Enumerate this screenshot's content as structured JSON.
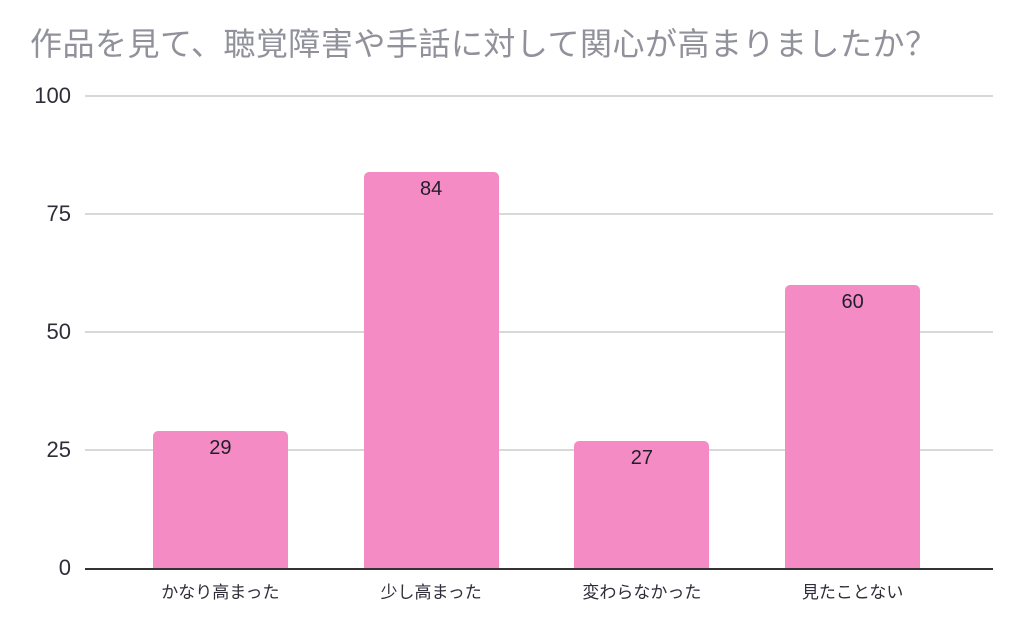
{
  "chart_data": {
    "type": "bar",
    "title": "作品を見て、聴覚障害や手話に対して関心が高まりましたか？",
    "categories": [
      "かなり高まった",
      "少し高まった",
      "変わらなかった",
      "見たことない"
    ],
    "values": [
      29,
      84,
      27,
      60
    ],
    "xlabel": "",
    "ylabel": "",
    "ylim": [
      0,
      100
    ],
    "yticks": [
      0,
      25,
      50,
      75,
      100
    ],
    "grid": true,
    "legend": "none"
  },
  "colors": {
    "bar": "#F58BC4",
    "title": "#91919B",
    "axis_label": "#2E2E38",
    "value_label": "#1F1F2B",
    "gridline": "#D8D8D8",
    "baseline": "#333333",
    "background": "#FFFFFF"
  }
}
